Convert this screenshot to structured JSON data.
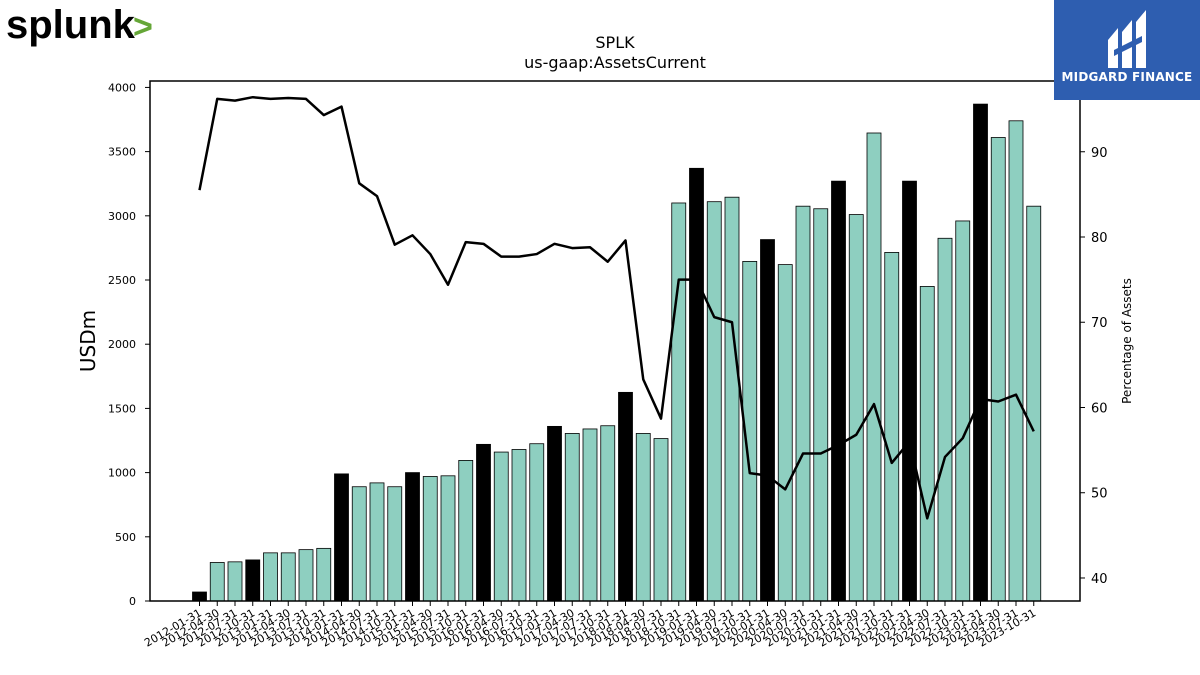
{
  "logos": {
    "left": {
      "text": "splunk",
      "mark": ">",
      "colors": {
        "text": "#000000",
        "mark": "#65a637"
      }
    },
    "right": {
      "text": "MIDGARD FINANCE",
      "colors": {
        "background": "#2e5eb0",
        "text": "#ffffff"
      }
    }
  },
  "chart_data": {
    "type": "bar",
    "title": "SPLK",
    "subtitle": "us-gaap:AssetsCurrent",
    "ylabel": "USDm",
    "y2label": "Percentage of Assets",
    "ylim": [
      0,
      4050
    ],
    "y2lim": [
      37.3,
      98.3
    ],
    "yticks": [
      "0",
      "500",
      "1000",
      "1500",
      "2000",
      "2500",
      "3000",
      "3500",
      "4000"
    ],
    "y2ticks": [
      "40",
      "50",
      "60",
      "70",
      "80",
      "90"
    ],
    "grid": false,
    "colors": {
      "bar": "#8ecfc0",
      "bar_highlight": "#000000",
      "line": "#000000"
    },
    "categories": [
      "2012-01-31",
      "2012-04-30",
      "2012-07-31",
      "2012-10-31",
      "2013-01-31",
      "2013-04-30",
      "2013-07-31",
      "2013-10-31",
      "2014-01-31",
      "2014-04-30",
      "2014-07-31",
      "2014-10-31",
      "2015-01-31",
      "2015-04-30",
      "2015-07-31",
      "2015-10-31",
      "2016-01-31",
      "2016-04-30",
      "2016-07-31",
      "2016-10-31",
      "2017-01-31",
      "2017-04-30",
      "2017-07-31",
      "2017-10-31",
      "2018-01-31",
      "2018-04-30",
      "2018-07-31",
      "2018-10-31",
      "2019-01-31",
      "2019-04-30",
      "2019-07-31",
      "2019-10-31",
      "2020-01-31",
      "2020-04-30",
      "2020-07-31",
      "2020-10-31",
      "2021-01-31",
      "2021-04-30",
      "2021-07-31",
      "2021-10-31",
      "2022-01-31",
      "2022-04-30",
      "2022-07-31",
      "2022-10-31",
      "2023-01-31",
      "2023-04-30",
      "2023-07-31",
      "2023-10-31"
    ],
    "series": [
      {
        "type": "bar",
        "values": [
          70,
          300,
          305,
          320,
          375,
          375,
          400,
          410,
          990,
          890,
          920,
          890,
          1000,
          970,
          975,
          1095,
          1220,
          1160,
          1180,
          1225,
          1360,
          1305,
          1340,
          1365,
          1625,
          1305,
          1265,
          3100,
          3370,
          3110,
          3145,
          2645,
          2815,
          2620,
          3075,
          3055,
          3270,
          3010,
          3645,
          2715,
          3270,
          2450,
          2825,
          2960,
          3870,
          3610,
          3740,
          3075
        ],
        "highlight": [
          true,
          false,
          false,
          true,
          false,
          false,
          false,
          false,
          true,
          false,
          false,
          false,
          true,
          false,
          false,
          false,
          true,
          false,
          false,
          false,
          true,
          false,
          false,
          false,
          true,
          false,
          false,
          false,
          true,
          false,
          false,
          false,
          true,
          false,
          false,
          false,
          true,
          false,
          false,
          false,
          true,
          false,
          false,
          false,
          true,
          false,
          false,
          false
        ]
      },
      {
        "type": "line",
        "axis": "right",
        "values": [
          85.5,
          96.2,
          96.0,
          96.4,
          96.2,
          96.3,
          96.2,
          94.3,
          95.3,
          86.3,
          84.8,
          79.1,
          80.2,
          78.0,
          74.4,
          79.4,
          79.2,
          77.7,
          77.7,
          78.0,
          79.2,
          78.7,
          78.8,
          77.1,
          79.6,
          63.3,
          58.7,
          75.0,
          75.0,
          70.6,
          70.0,
          52.3,
          52.0,
          50.4,
          54.6,
          54.6,
          55.6,
          56.8,
          60.4,
          53.5,
          56.0,
          47.0,
          54.2,
          56.4,
          61.0,
          60.7,
          61.5,
          57.2
        ]
      }
    ]
  }
}
